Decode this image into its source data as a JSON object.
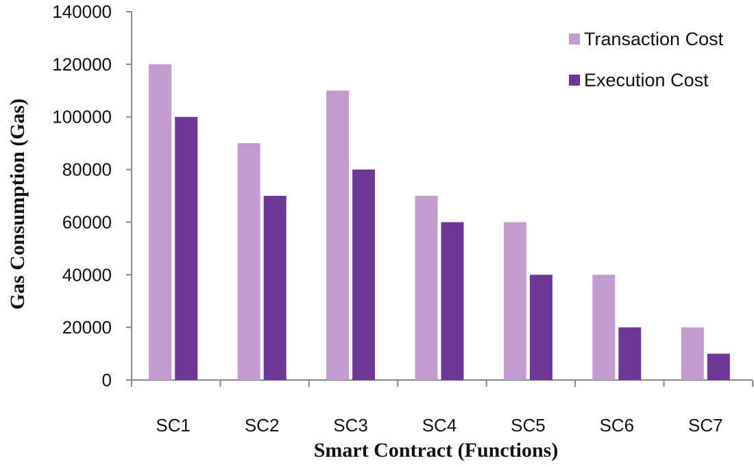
{
  "chart_data": {
    "type": "bar",
    "title": "",
    "xlabel": "Smart Contract (Functions)",
    "ylabel": "Gas  Consumption (Gas)",
    "categories": [
      "SC1",
      "SC2",
      "SC3",
      "SC4",
      "SC5",
      "SC6",
      "SC7"
    ],
    "series": [
      {
        "name": "Transaction Cost",
        "color": "#c09ccf",
        "values": [
          120000,
          90000,
          110000,
          70000,
          60000,
          40000,
          20000
        ]
      },
      {
        "name": "Execution Cost",
        "color": "#6e3797",
        "values": [
          100000,
          70000,
          80000,
          60000,
          40000,
          20000,
          10000
        ]
      }
    ],
    "ylim": [
      0,
      140000
    ],
    "yticks": [
      "0",
      "20000",
      "40000",
      "60000",
      "80000",
      "100000",
      "120000",
      "140000"
    ],
    "legend_position": "top-right",
    "grid": false
  }
}
